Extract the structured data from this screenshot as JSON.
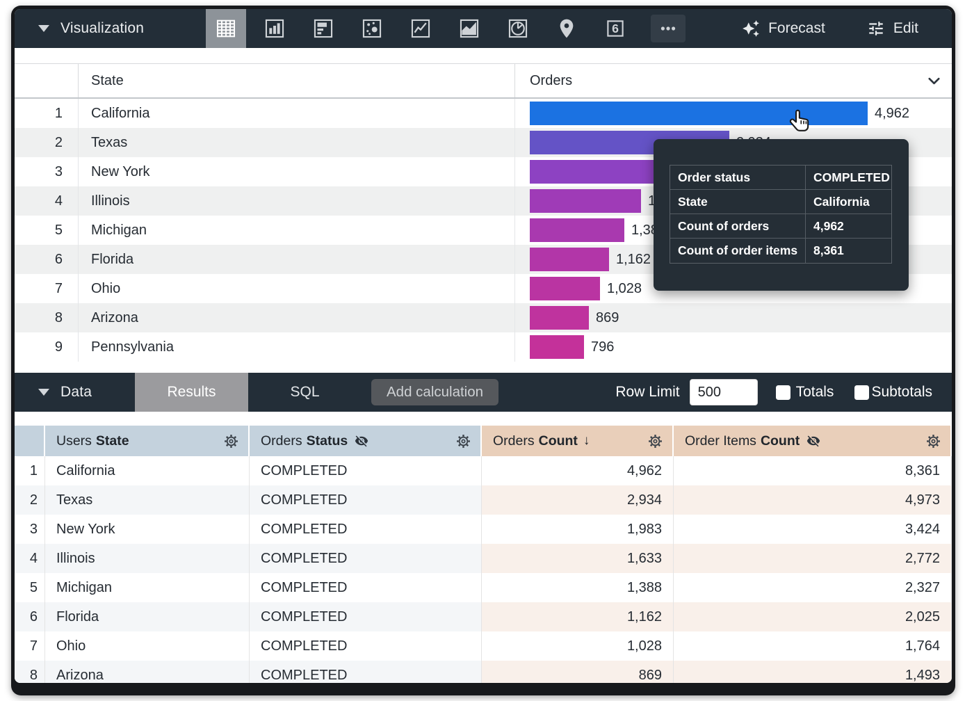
{
  "viz_toolbar": {
    "title": "Visualization",
    "icons": [
      "table",
      "column-chart",
      "bar-chart",
      "scatter-plot",
      "line-chart",
      "area-chart",
      "pie-chart",
      "map",
      "single-value",
      "more"
    ],
    "selected_icon": "table",
    "forecast_label": "Forecast",
    "edit_label": "Edit"
  },
  "viz_table": {
    "state_header": "State",
    "orders_header": "Orders",
    "rows": [
      {
        "n": "1",
        "state": "California",
        "value": 4962,
        "value_label": "4,962",
        "color": "#1b72e2"
      },
      {
        "n": "2",
        "state": "Texas",
        "value": 2934,
        "value_label": "2,934",
        "color": "#6453c6"
      },
      {
        "n": "3",
        "state": "New York",
        "value": 1983,
        "value_label": "1,983",
        "color": "#8d42c2"
      },
      {
        "n": "4",
        "state": "Illinois",
        "value": 1633,
        "value_label": "1,633",
        "color": "#9f3bb7"
      },
      {
        "n": "5",
        "state": "Michigan",
        "value": 1388,
        "value_label": "1,388",
        "color": "#a939af"
      },
      {
        "n": "6",
        "state": "Florida",
        "value": 1162,
        "value_label": "1,162",
        "color": "#b236a8"
      },
      {
        "n": "7",
        "state": "Ohio",
        "value": 1028,
        "value_label": "1,028",
        "color": "#ba34a2"
      },
      {
        "n": "8",
        "state": "Arizona",
        "value": 869,
        "value_label": "869",
        "color": "#bf339e"
      },
      {
        "n": "9",
        "state": "Pennsylvania",
        "value": 796,
        "value_label": "796",
        "color": "#c4319a"
      }
    ]
  },
  "tooltip": {
    "rows": [
      {
        "label": "Order status",
        "value": "COMPLETED"
      },
      {
        "label": "State",
        "value": "California"
      },
      {
        "label": "Count of orders",
        "value": "4,962"
      },
      {
        "label": "Count of order items",
        "value": "8,361"
      }
    ]
  },
  "data_toolbar": {
    "title": "Data",
    "results_tab": "Results",
    "sql_tab": "SQL",
    "add_calculation_label": "Add calculation",
    "row_limit_label": "Row Limit",
    "row_limit_value": "500",
    "totals_label": "Totals",
    "subtotals_label": "Subtotals"
  },
  "data_table": {
    "sort_arrow": "↓",
    "headers": [
      {
        "pre": "Users",
        "label": "State"
      },
      {
        "pre": "Orders",
        "label": "Status"
      },
      {
        "pre": "Orders",
        "label": "Count"
      },
      {
        "pre": "Order Items",
        "label": "Count"
      }
    ],
    "rows": [
      {
        "n": "1",
        "state": "California",
        "status": "COMPLETED",
        "count": "4,962",
        "items": "8,361"
      },
      {
        "n": "2",
        "state": "Texas",
        "status": "COMPLETED",
        "count": "2,934",
        "items": "4,973"
      },
      {
        "n": "3",
        "state": "New York",
        "status": "COMPLETED",
        "count": "1,983",
        "items": "3,424"
      },
      {
        "n": "4",
        "state": "Illinois",
        "status": "COMPLETED",
        "count": "1,633",
        "items": "2,772"
      },
      {
        "n": "5",
        "state": "Michigan",
        "status": "COMPLETED",
        "count": "1,388",
        "items": "2,327"
      },
      {
        "n": "6",
        "state": "Florida",
        "status": "COMPLETED",
        "count": "1,162",
        "items": "2,025"
      },
      {
        "n": "7",
        "state": "Ohio",
        "status": "COMPLETED",
        "count": "1,028",
        "items": "1,764"
      },
      {
        "n": "8",
        "state": "Arizona",
        "status": "COMPLETED",
        "count": "869",
        "items": "1,493"
      }
    ]
  },
  "chart_data": {
    "type": "bar",
    "orientation": "horizontal",
    "categories": [
      "California",
      "Texas",
      "New York",
      "Illinois",
      "Michigan",
      "Florida",
      "Ohio",
      "Arizona",
      "Pennsylvania"
    ],
    "series": [
      {
        "name": "Orders",
        "values": [
          4962,
          2934,
          1983,
          1633,
          1388,
          1162,
          1028,
          869,
          796
        ]
      }
    ],
    "value_labels": [
      "4,962",
      "2,934",
      "1,983",
      "1,633",
      "1,388",
      "1,162",
      "1,028",
      "869",
      "796"
    ],
    "max_value": 4962,
    "palette": [
      "#1b72e2",
      "#6453c6",
      "#8d42c2",
      "#9f3bb7",
      "#a939af",
      "#b236a8",
      "#ba34a2",
      "#bf339e",
      "#c4319a"
    ]
  }
}
